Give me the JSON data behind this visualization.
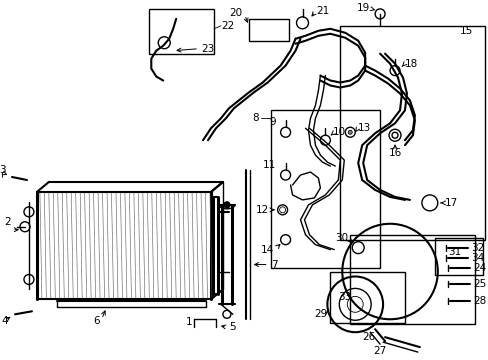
{
  "bg_color": "#ffffff",
  "fig_width": 4.89,
  "fig_height": 3.6,
  "dpi": 100,
  "label_fs": 7.5
}
